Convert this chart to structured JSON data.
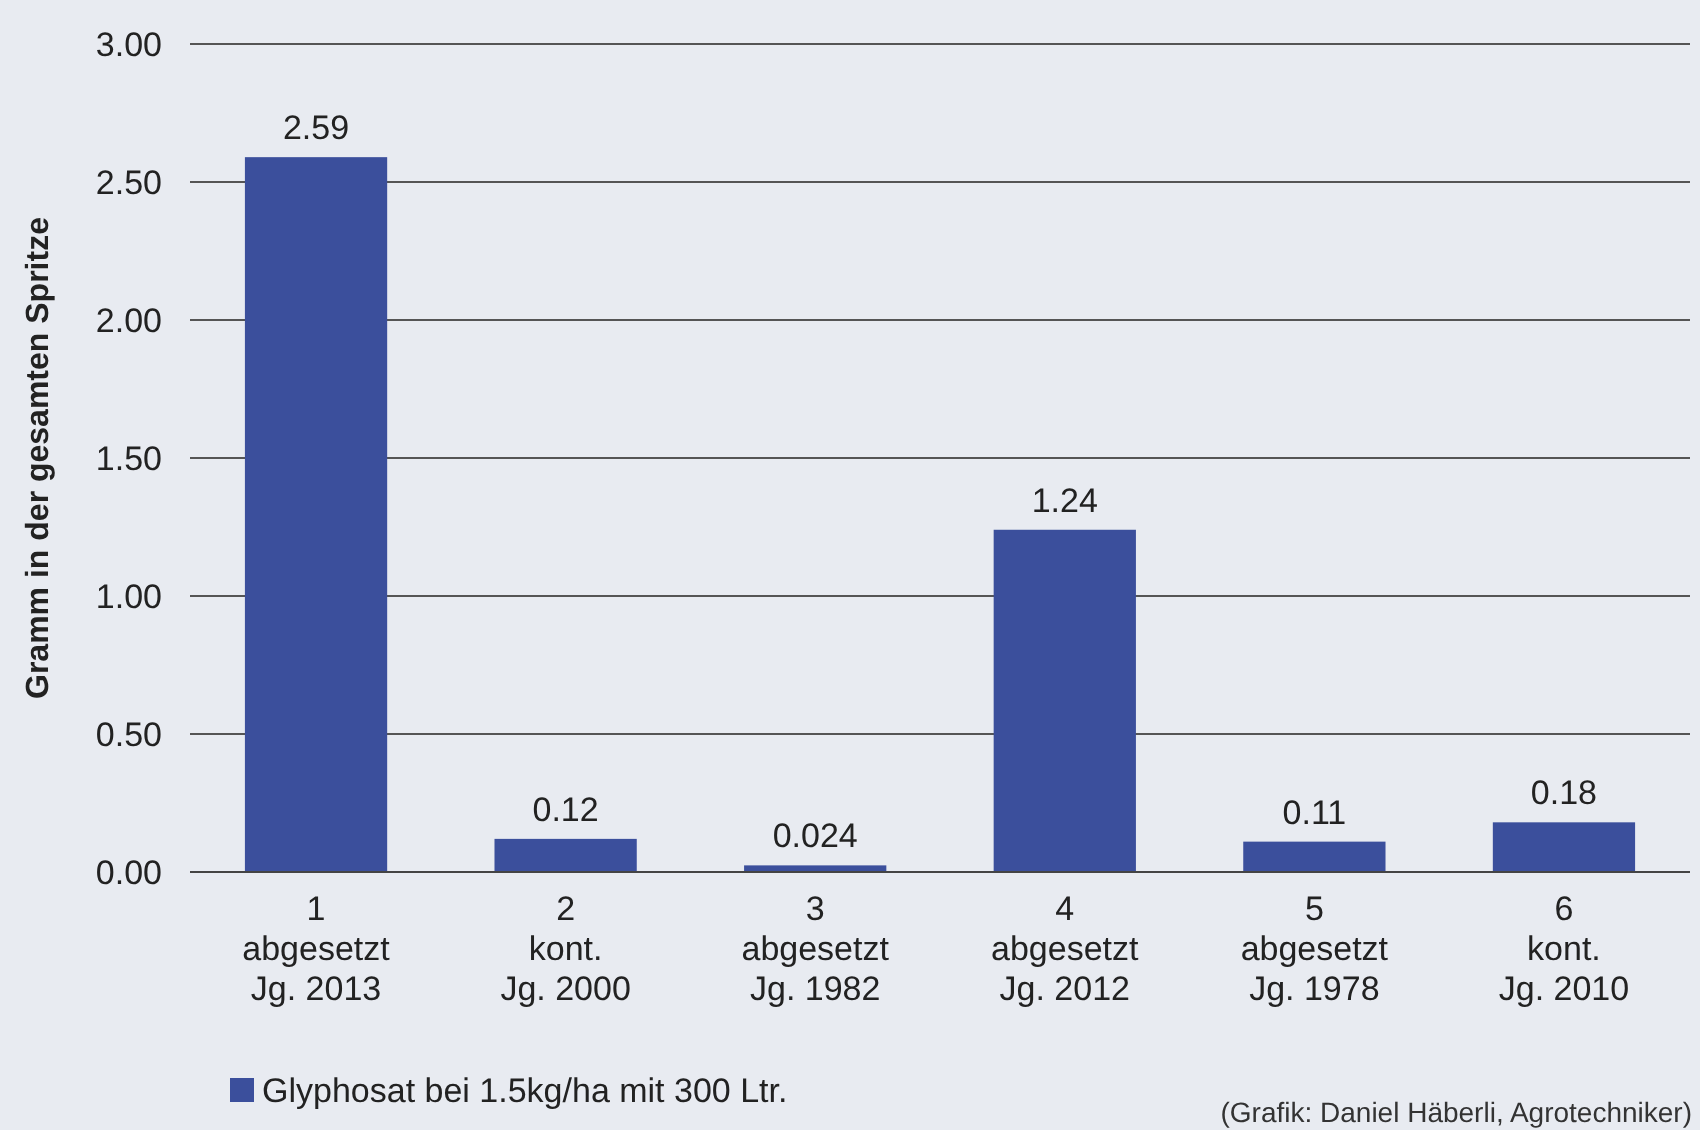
{
  "chart_data": {
    "type": "bar",
    "ylabel": "Gramm in der gesamten Spritze",
    "categories": [
      "1\nabgesetzt\nJg. 2013",
      "2\nkont.\nJg. 2000",
      "3\nabgesetzt\nJg. 1982",
      "4\nabgesetzt\nJg. 2012",
      "5\nabgesetzt\nJg. 1978",
      "6\nkont.\nJg. 2010"
    ],
    "series": [
      {
        "name": "Glyphosat bei 1.5kg/ha mit 300 Ltr.",
        "color": "#3b4f9c",
        "values": [
          2.59,
          0.12,
          0.024,
          1.24,
          0.11,
          0.18
        ]
      }
    ],
    "ylim": [
      0,
      3
    ],
    "yticks": [
      {
        "value": 0,
        "label": "0.00"
      },
      {
        "value": 0.5,
        "label": "0.50"
      },
      {
        "value": 1,
        "label": "1.00"
      },
      {
        "value": 1.5,
        "label": "1.50"
      },
      {
        "value": 2,
        "label": "2.00"
      },
      {
        "value": 2.5,
        "label": "2.50"
      },
      {
        "value": 3,
        "label": "3.00"
      }
    ],
    "grid": "y",
    "data_labels": true,
    "legend": "bottom left",
    "annotations": [
      "(Grafik: Daniel Häberli, Agrotechniker)"
    ]
  }
}
